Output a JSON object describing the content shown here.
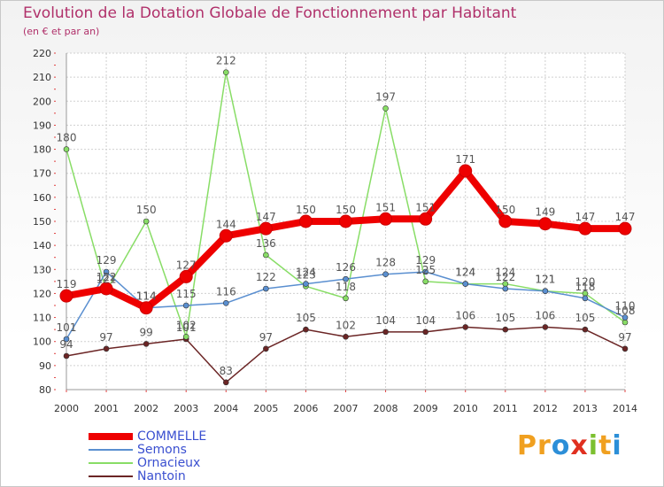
{
  "title": "Evolution de la Dotation Globale de Fonctionnement par Habitant",
  "subtitle": "(en € et par an)",
  "logo": {
    "text": "Proxiti",
    "letters": [
      {
        "ch": "P",
        "color": "#f0a020"
      },
      {
        "ch": "r",
        "color": "#f0a020"
      },
      {
        "ch": "o",
        "color": "#2c8fd8"
      },
      {
        "ch": "x",
        "color": "#e03020"
      },
      {
        "ch": "i",
        "color": "#7cc030"
      },
      {
        "ch": "t",
        "color": "#f0a020"
      },
      {
        "ch": "i",
        "color": "#2c8fd8"
      }
    ]
  },
  "chart_data": {
    "type": "line",
    "x": [
      "2000",
      "2001",
      "2002",
      "2003",
      "2004",
      "2005",
      "2006",
      "2007",
      "2008",
      "2009",
      "2010",
      "2011",
      "2012",
      "2013",
      "2014"
    ],
    "ylim": [
      80,
      220
    ],
    "ytick_step": 10,
    "grid": true,
    "legend_position": "bottom-left",
    "series": [
      {
        "name": "COMMELLE",
        "color": "#ee0000",
        "width": 8,
        "marker": 7,
        "values": [
          119,
          122,
          114,
          127,
          144,
          147,
          150,
          150,
          151,
          151,
          171,
          150,
          149,
          147,
          147
        ]
      },
      {
        "name": "Semons",
        "color": "#5a8fd0",
        "width": 1.5,
        "marker": 3,
        "values": [
          101,
          129,
          114,
          115,
          116,
          122,
          124,
          126,
          128,
          129,
          124,
          122,
          121,
          118,
          110
        ]
      },
      {
        "name": "Ornacieux",
        "color": "#88dd66",
        "width": 1.5,
        "marker": 3,
        "values": [
          180,
          121,
          150,
          102,
          212,
          136,
          123,
          118,
          197,
          125,
          124,
          124,
          121,
          120,
          108
        ]
      },
      {
        "name": "Nantoin",
        "color": "#6b2525",
        "width": 1.5,
        "marker": 3,
        "values": [
          94,
          97,
          99,
          101,
          83,
          97,
          105,
          102,
          104,
          104,
          106,
          105,
          106,
          105,
          97
        ]
      }
    ]
  }
}
